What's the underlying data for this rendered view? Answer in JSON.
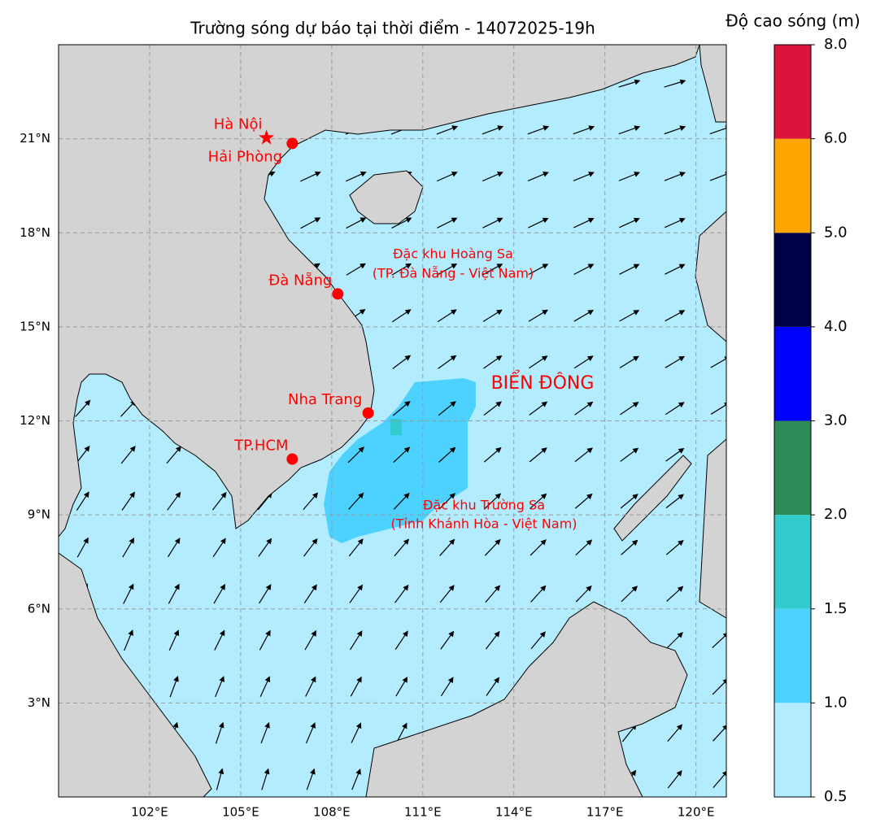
{
  "chart_data": {
    "type": "map",
    "title": "Trường sóng dự báo tại thời điểm - 14072025-19h",
    "xlim": [
      99,
      121
    ],
    "ylim": [
      0,
      24
    ],
    "xticks": [
      {
        "value": 102,
        "label": "102°E"
      },
      {
        "value": 105,
        "label": "105°E"
      },
      {
        "value": 108,
        "label": "108°E"
      },
      {
        "value": 111,
        "label": "111°E"
      },
      {
        "value": 114,
        "label": "114°E"
      },
      {
        "value": 117,
        "label": "117°E"
      },
      {
        "value": 120,
        "label": "120°E"
      }
    ],
    "yticks": [
      {
        "value": 3,
        "label": "3°N"
      },
      {
        "value": 6,
        "label": "6°N"
      },
      {
        "value": 9,
        "label": "9°N"
      },
      {
        "value": 12,
        "label": "12°N"
      },
      {
        "value": 15,
        "label": "15°N"
      },
      {
        "value": 18,
        "label": "18°N"
      },
      {
        "value": 21,
        "label": "21°N"
      }
    ],
    "grid": true,
    "cities": [
      {
        "name": "Hà Nội",
        "lon": 105.85,
        "lat": 21.03,
        "marker": "star"
      },
      {
        "name": "Hải Phòng",
        "lon": 106.7,
        "lat": 20.85,
        "marker": "circle"
      },
      {
        "name": "Đà Nẵng",
        "lon": 108.2,
        "lat": 16.05,
        "marker": "circle"
      },
      {
        "name": "Nha Trang",
        "lon": 109.2,
        "lat": 12.25,
        "marker": "circle"
      },
      {
        "name": "TP.HCM",
        "lon": 106.7,
        "lat": 10.78,
        "marker": "circle"
      }
    ],
    "annotations": [
      "Đặc khu Hoàng Sa",
      "(TP. Đà Nẵng - Việt Nam)",
      "BIỂN ĐÔNG",
      "Đặc khu Trường Sa",
      "(Tỉnh Khánh Hòa - Việt Nam)"
    ],
    "colorbar": {
      "label": "Độ cao sóng (m)",
      "ticks": [
        0.5,
        {
          "value": 1,
          "label": "1.0"
        },
        {
          "value": 1.5,
          "label": "1.5"
        },
        {
          "value": 2,
          "label": "2.0"
        },
        {
          "value": 3,
          "label": "3.0"
        },
        {
          "value": 4,
          "label": "4.0"
        },
        {
          "value": 5,
          "label": "5.0"
        },
        {
          "value": 6,
          "label": "6.0"
        },
        {
          "value": 8,
          "label": "8.0"
        }
      ],
      "colors": [
        "#b3ecff",
        "#4dd2ff",
        "#33cccc",
        "#2e8b57",
        "#0000ff",
        "#000046",
        "#ffa500",
        "#dc143c"
      ]
    }
  }
}
